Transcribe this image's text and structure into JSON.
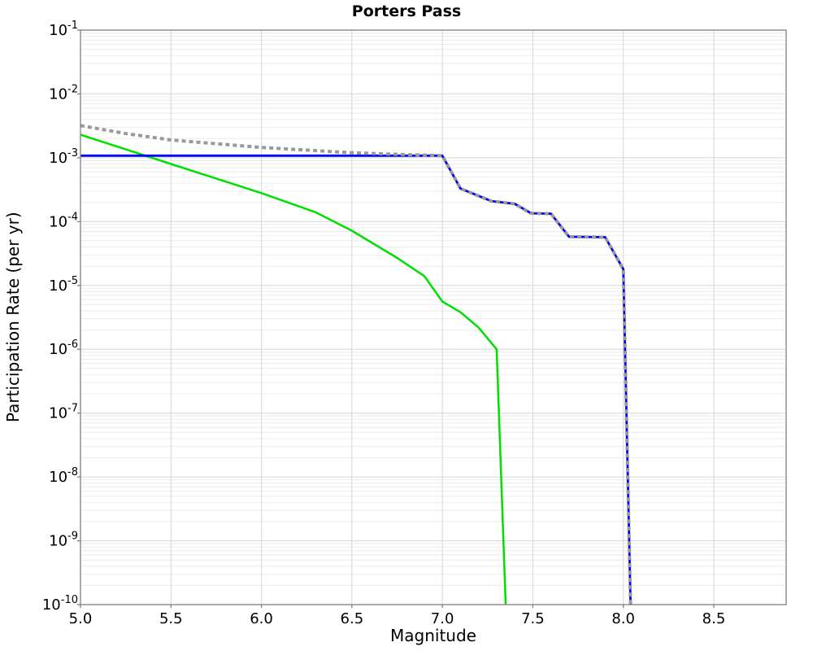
{
  "title": "Porters Pass",
  "chart_data": {
    "type": "line",
    "title": "Porters Pass",
    "xlabel": "Magnitude",
    "ylabel": "Participation Rate (per yr)",
    "xlim": [
      5.0,
      8.9
    ],
    "ylog_top": -1,
    "ylog_bottom": -10,
    "x_ticks": [
      "5.0",
      "5.5",
      "6.0",
      "6.5",
      "7.0",
      "7.5",
      "8.0",
      "8.5"
    ],
    "y_tick_exponents": [
      -1,
      -2,
      -3,
      -4,
      -5,
      -6,
      -7,
      -8,
      -9,
      -10
    ],
    "grid": {
      "major_color": "#d6d6d6",
      "minor_color": "#ebebeb",
      "border_color": "#7f7f7f",
      "background": "#ffffff"
    },
    "legend": "none",
    "series": [
      {
        "name": "green solid curve",
        "color": "#00e000",
        "width": 2.5,
        "dash": null,
        "points": [
          [
            5.0,
            0.0023
          ],
          [
            5.5,
            0.0008
          ],
          [
            6.0,
            0.00028
          ],
          [
            6.3,
            0.00014
          ],
          [
            6.5,
            7.2e-05
          ],
          [
            6.75,
            2.7e-05
          ],
          [
            6.9,
            1.4e-05
          ],
          [
            7.0,
            5.6e-06
          ],
          [
            7.1,
            3.8e-06
          ],
          [
            7.2,
            2.2e-06
          ],
          [
            7.3,
            1e-06
          ],
          [
            7.35,
            1e-10
          ]
        ]
      },
      {
        "name": "blue solid curve",
        "color": "#0000ff",
        "width": 2.8,
        "dash": null,
        "points": [
          [
            5.0,
            0.00108
          ],
          [
            7.0,
            0.00108
          ],
          [
            7.1,
            0.00033
          ],
          [
            7.27,
            0.00021
          ],
          [
            7.4,
            0.00019
          ],
          [
            7.49,
            0.000135
          ],
          [
            7.6,
            0.000133
          ],
          [
            7.7,
            5.8e-05
          ],
          [
            7.9,
            5.7e-05
          ],
          [
            8.0,
            1.8e-05
          ],
          [
            8.04,
            1e-10
          ]
        ]
      },
      {
        "name": "gray dotted curve",
        "color": "#999999",
        "width": 4,
        "dash": "5 4",
        "points": [
          [
            5.0,
            0.0032
          ],
          [
            5.25,
            0.0024
          ],
          [
            5.5,
            0.0019
          ],
          [
            6.0,
            0.00145
          ],
          [
            6.5,
            0.0012
          ],
          [
            6.8,
            0.00112
          ],
          [
            7.0,
            0.00108
          ],
          [
            7.1,
            0.00033
          ],
          [
            7.27,
            0.00021
          ],
          [
            7.4,
            0.00019
          ],
          [
            7.49,
            0.000135
          ],
          [
            7.6,
            0.000133
          ],
          [
            7.7,
            5.8e-05
          ],
          [
            7.9,
            5.7e-05
          ],
          [
            8.0,
            1.8e-05
          ],
          [
            8.04,
            1e-10
          ]
        ]
      }
    ]
  }
}
